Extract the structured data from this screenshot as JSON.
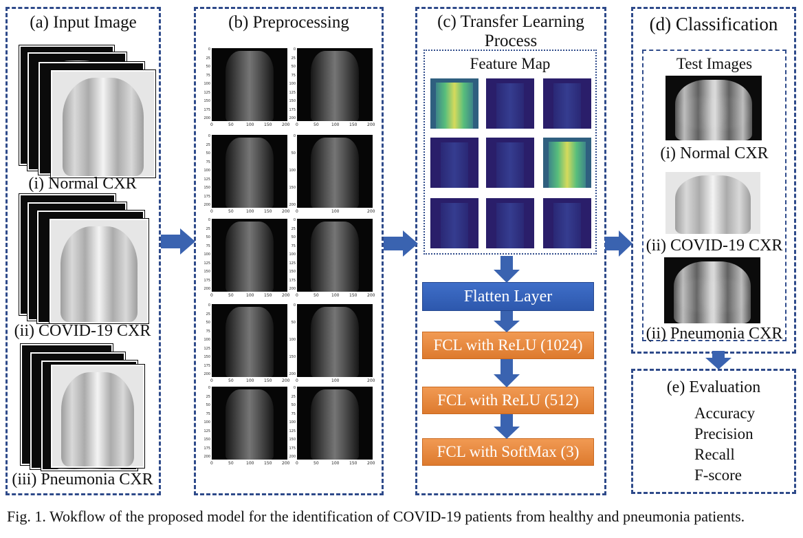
{
  "caption": "Fig. 1. Wokflow of the proposed model for the identification of COVID-19 patients from healthy and pneumonia patients.",
  "panel_a": {
    "title": "(a) Input Image",
    "labels": [
      "(i) Normal CXR",
      "(ii) COVID-19 CXR",
      "(iii) Pneumonia CXR"
    ]
  },
  "panel_b": {
    "title": "(b) Preprocessing",
    "plots": [
      {
        "yticks": [
          "0",
          "25",
          "50",
          "75",
          "100",
          "125",
          "150",
          "175",
          "200"
        ],
        "xticks": [
          "0",
          "50",
          "100",
          "150",
          "200"
        ]
      },
      {
        "yticks": [
          "0",
          "25",
          "50",
          "75",
          "100",
          "125",
          "150",
          "175",
          "200"
        ],
        "xticks": [
          "0",
          "50",
          "100",
          "150",
          "200"
        ]
      },
      {
        "yticks": [
          "0",
          "25",
          "50",
          "75",
          "100",
          "125",
          "150",
          "175",
          "200"
        ],
        "xticks": [
          "0",
          "50",
          "100",
          "150",
          "200"
        ]
      },
      {
        "yticks": [
          "0",
          "50",
          "100",
          "150",
          "200"
        ],
        "xticks": [
          "0",
          "100",
          "200"
        ]
      },
      {
        "yticks": [
          "0",
          "25",
          "50",
          "75",
          "100",
          "125",
          "150",
          "175",
          "200"
        ],
        "xticks": [
          "0",
          "50",
          "100",
          "150",
          "200"
        ]
      },
      {
        "yticks": [
          "0",
          "25",
          "50",
          "75",
          "100",
          "125",
          "150",
          "175",
          "200"
        ],
        "xticks": [
          "0",
          "50",
          "100",
          "150",
          "200"
        ]
      },
      {
        "yticks": [
          "0",
          "25",
          "50",
          "75",
          "100",
          "125",
          "150",
          "175",
          "200"
        ],
        "xticks": [
          "0",
          "50",
          "100",
          "150",
          "200"
        ]
      },
      {
        "yticks": [
          "0",
          "50",
          "100",
          "150",
          "200"
        ],
        "xticks": [
          "0",
          "100",
          "200"
        ]
      },
      {
        "yticks": [
          "0",
          "25",
          "50",
          "75",
          "100",
          "125",
          "150",
          "175",
          "200"
        ],
        "xticks": [
          "0",
          "50",
          "100",
          "150",
          "200"
        ]
      },
      {
        "yticks": [
          "0",
          "25",
          "50",
          "75",
          "100",
          "125",
          "150",
          "175",
          "200"
        ],
        "xticks": [
          "0",
          "50",
          "100",
          "150",
          "200"
        ]
      }
    ]
  },
  "panel_c": {
    "title_line1": "(c) Transfer Learning",
    "title_line2": "Process",
    "feature_map_label": "Feature Map",
    "layers": [
      "Flatten Layer",
      "FCL with ReLU (1024)",
      "FCL with ReLU (512)",
      "FCL with SoftMax (3)"
    ]
  },
  "panel_d": {
    "title": "(d) Classification",
    "test_images_label": "Test Images",
    "labels": [
      "(i) Normal CXR",
      "(ii) COVID-19 CXR",
      "(ii) Pneumonia CXR"
    ]
  },
  "panel_e": {
    "title": "(e) Evaluation",
    "metrics": [
      "Accuracy",
      "Precision",
      "Recall",
      "F-score"
    ]
  },
  "colors": {
    "border": "#2e4a8a",
    "arrow": "#3a63b0",
    "flatten_box": "#3568c0",
    "fcl_box": "#ec8a40"
  }
}
